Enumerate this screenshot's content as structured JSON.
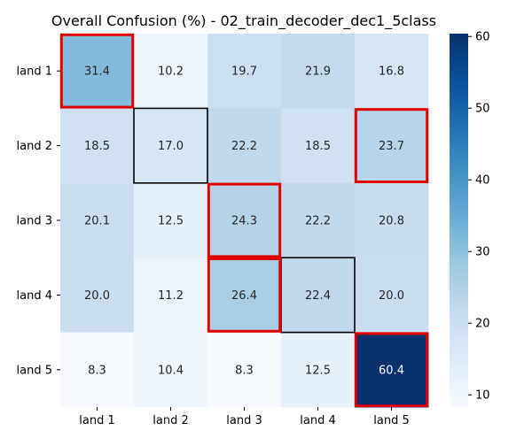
{
  "chart_data": {
    "type": "heatmap",
    "title": "Overall Confusion (%) - 02_train_decoder_dec1_5class",
    "xlabel": "",
    "ylabel": "",
    "x_categories": [
      "land 1",
      "land 2",
      "land 3",
      "land 4",
      "land 5"
    ],
    "y_categories": [
      "land 1",
      "land 2",
      "land 3",
      "land 4",
      "land 5"
    ],
    "values": [
      [
        31.4,
        10.2,
        19.7,
        21.9,
        16.8
      ],
      [
        18.5,
        17.0,
        22.2,
        18.5,
        23.7
      ],
      [
        20.1,
        12.5,
        24.3,
        22.2,
        20.8
      ],
      [
        20.0,
        11.2,
        26.4,
        22.4,
        20.0
      ],
      [
        8.3,
        10.4,
        8.3,
        12.5,
        60.4
      ]
    ],
    "value_format": "0.1",
    "colormap": "Blues",
    "color_range": [
      8.3,
      60.4
    ],
    "colorbar_ticks": [
      10,
      20,
      30,
      40,
      50,
      60
    ],
    "highlights": {
      "row_max": [
        {
          "row": 0,
          "col": 0
        },
        {
          "row": 1,
          "col": 4
        },
        {
          "row": 2,
          "col": 2
        },
        {
          "row": 3,
          "col": 2
        },
        {
          "row": 4,
          "col": 4
        }
      ],
      "diagonal": [
        {
          "row": 0,
          "col": 0
        },
        {
          "row": 1,
          "col": 1
        },
        {
          "row": 2,
          "col": 2
        },
        {
          "row": 3,
          "col": 3
        },
        {
          "row": 4,
          "col": 4
        }
      ],
      "row_max_color": "#e00000",
      "diagonal_color": "#000000"
    },
    "grid": false,
    "legend": "colorbar-right"
  }
}
